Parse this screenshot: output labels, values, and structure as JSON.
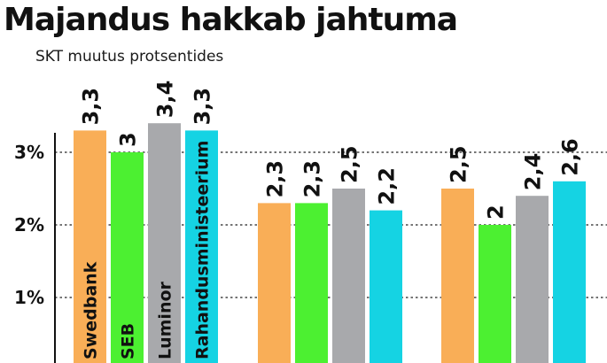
{
  "chart_data": {
    "type": "bar",
    "title": "Majandus hakkab jahtuma",
    "subtitle": "SKT muutus protsentides",
    "xlabel": "",
    "ylabel": "",
    "ylim": [
      0,
      3.5
    ],
    "yticks": [
      {
        "value": 1,
        "label": "1%"
      },
      {
        "value": 2,
        "label": "2%"
      },
      {
        "value": 3,
        "label": "3%"
      }
    ],
    "grid": true,
    "legend_placement": "inside-bars",
    "groups": 3,
    "series": [
      {
        "name": "Swedbank",
        "color": "#F9AE57",
        "values": [
          3.3,
          2.3,
          2.5
        ],
        "labels": [
          "3,3",
          "2,3",
          "2,5"
        ]
      },
      {
        "name": "SEB",
        "color": "#4CF031",
        "values": [
          3.0,
          2.3,
          2.0
        ],
        "labels": [
          "3",
          "2,3",
          "2"
        ]
      },
      {
        "name": "Luminor",
        "color": "#A8A9AC",
        "values": [
          3.4,
          2.5,
          2.4
        ],
        "labels": [
          "3,4",
          "2,5",
          "2,4"
        ]
      },
      {
        "name": "Rahandusministeerium",
        "color": "#15D3E3",
        "values": [
          3.3,
          2.2,
          2.6
        ],
        "labels": [
          "3,3",
          "2,2",
          "2,6"
        ]
      }
    ]
  }
}
